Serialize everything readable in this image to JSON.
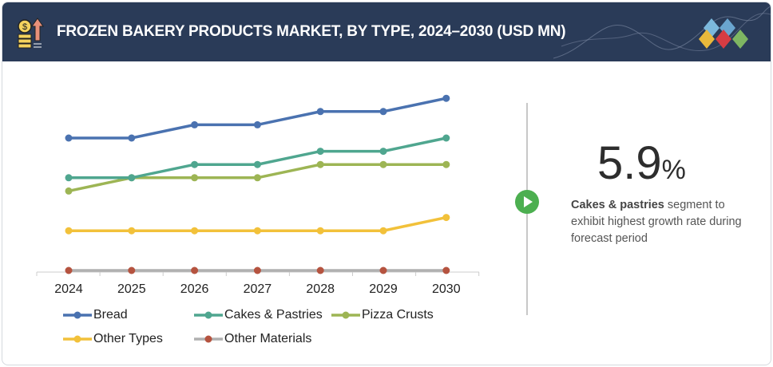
{
  "header": {
    "title": "FROZEN BAKERY PRODUCTS MARKET, BY TYPE, 2024–2030 (USD MN)"
  },
  "highlight": {
    "value": "5.9",
    "unit": "%",
    "bold": "Cakes & pastries",
    "text": " segment to exhibit highest growth rate during forecast period"
  },
  "chart_data": {
    "type": "line",
    "title": "FROZEN BAKERY PRODUCTS MARKET, BY TYPE, 2024–2030 (USD MN)",
    "x": [
      "2024",
      "2025",
      "2026",
      "2027",
      "2028",
      "2029",
      "2030"
    ],
    "ylim": [
      0,
      13
    ],
    "y_axis_shown": false,
    "grid": false,
    "legend": "bottom",
    "series": [
      {
        "name": "Bread",
        "color": "#4a72b0",
        "values": [
          10,
          10,
          11,
          11,
          12,
          12,
          13
        ]
      },
      {
        "name": "Cakes & Pastries",
        "color": "#4fa68f",
        "values": [
          7,
          7,
          8,
          8,
          9,
          9,
          10
        ]
      },
      {
        "name": "Pizza Crusts",
        "color": "#9db554",
        "values": [
          6,
          7,
          7,
          7,
          8,
          8,
          8
        ]
      },
      {
        "name": "Other Types",
        "color": "#f2c13a",
        "values": [
          3,
          3,
          3,
          3,
          3,
          3,
          4
        ]
      },
      {
        "name": "Other Materials",
        "color": "#b0b0b0",
        "marker_color": "#b5533f",
        "values": [
          0,
          0,
          0,
          0,
          0,
          0,
          0
        ]
      }
    ]
  }
}
